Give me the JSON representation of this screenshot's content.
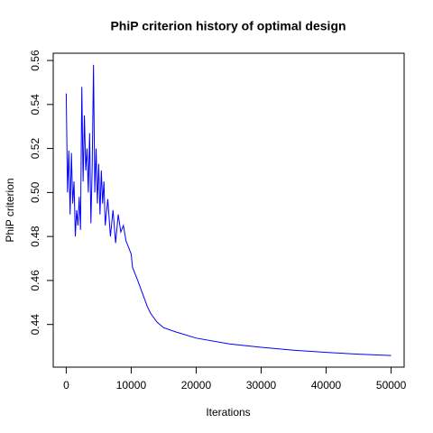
{
  "chart_data": {
    "type": "line",
    "title": "PhiP criterion history of optimal design",
    "xlabel": "Iterations",
    "ylabel": "PhiP criterion",
    "x": [
      0,
      200,
      400,
      600,
      800,
      1000,
      1200,
      1400,
      1600,
      1800,
      2000,
      2200,
      2400,
      2600,
      2800,
      3000,
      3200,
      3400,
      3600,
      3800,
      4000,
      4200,
      4400,
      4600,
      4800,
      5000,
      5200,
      5400,
      5600,
      5800,
      6000,
      6400,
      6800,
      7200,
      7600,
      8000,
      8400,
      8800,
      9200,
      9600,
      10000,
      10200,
      10600,
      11000,
      11500,
      12000,
      12500,
      13000,
      14000,
      15000,
      17000,
      20000,
      25000,
      30000,
      35000,
      40000,
      45000,
      50000
    ],
    "series": [
      {
        "color": "#0000ff",
        "values": [
          0.545,
          0.5,
          0.519,
          0.49,
          0.518,
          0.495,
          0.505,
          0.48,
          0.492,
          0.485,
          0.498,
          0.483,
          0.548,
          0.505,
          0.535,
          0.51,
          0.52,
          0.5,
          0.527,
          0.486,
          0.512,
          0.558,
          0.5,
          0.52,
          0.495,
          0.513,
          0.49,
          0.51,
          0.495,
          0.505,
          0.485,
          0.497,
          0.48,
          0.492,
          0.477,
          0.49,
          0.482,
          0.485,
          0.478,
          0.475,
          0.472,
          0.466,
          0.463,
          0.46,
          0.456,
          0.452,
          0.448,
          0.445,
          0.441,
          0.4385,
          0.4365,
          0.4338,
          0.4312,
          0.4296,
          0.4283,
          0.4273,
          0.4265,
          0.4259
        ]
      }
    ],
    "xlim": [
      -2000,
      52000
    ],
    "ylim": [
      0.4206,
      0.5633
    ],
    "xticks": [
      0,
      10000,
      20000,
      30000,
      40000,
      50000
    ],
    "yticks": [
      0.44,
      0.46,
      0.48,
      {
        "value": 0.5,
        "label": "0.50"
      },
      0.52,
      0.54,
      0.56
    ]
  }
}
